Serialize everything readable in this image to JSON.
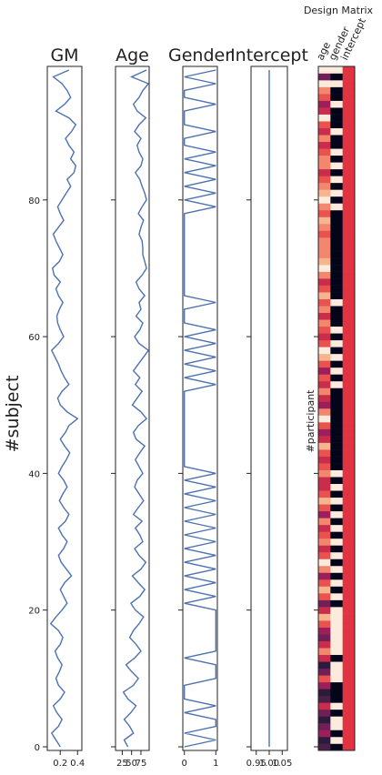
{
  "chart_data": {
    "type": "line",
    "ylabel": "#subject",
    "ylim": [
      0,
      99
    ],
    "yticks": [
      0,
      20,
      40,
      60,
      80
    ],
    "line_color": "#4c72b0",
    "panels": [
      {
        "title": "GM",
        "xticks": [
          0.2,
          0.4
        ],
        "xlim": [
          0.05,
          0.45
        ],
        "values": [
          0.2,
          0.15,
          0.1,
          0.18,
          0.22,
          0.16,
          0.12,
          0.2,
          0.25,
          0.18,
          0.15,
          0.19,
          0.22,
          0.17,
          0.14,
          0.2,
          0.23,
          0.18,
          0.09,
          0.15,
          0.22,
          0.28,
          0.24,
          0.2,
          0.25,
          0.33,
          0.27,
          0.21,
          0.18,
          0.24,
          0.28,
          0.22,
          0.18,
          0.26,
          0.3,
          0.24,
          0.19,
          0.23,
          0.28,
          0.24,
          0.18,
          0.22,
          0.27,
          0.31,
          0.25,
          0.2,
          0.26,
          0.3,
          0.4,
          0.28,
          0.2,
          0.17,
          0.22,
          0.3,
          0.25,
          0.21,
          0.18,
          0.14,
          0.1,
          0.18,
          0.24,
          0.2,
          0.17,
          0.16,
          0.19,
          0.23,
          0.18,
          0.15,
          0.2,
          0.13,
          0.11,
          0.19,
          0.23,
          0.19,
          0.15,
          0.12,
          0.18,
          0.24,
          0.2,
          0.17,
          0.22,
          0.27,
          0.32,
          0.28,
          0.36,
          0.38,
          0.32,
          0.36,
          0.3,
          0.26,
          0.33,
          0.38,
          0.3,
          0.15,
          0.25,
          0.32,
          0.28,
          0.22,
          0.12,
          0.3
        ]
      },
      {
        "title": "Age",
        "xticks": [
          25,
          50,
          75
        ],
        "xticklabels": [
          "25",
          "50",
          "75"
        ],
        "xlim": [
          7,
          97
        ],
        "values": [
          40,
          30,
          55,
          45,
          30,
          48,
          62,
          40,
          28,
          55,
          68,
          50,
          35,
          58,
          75,
          62,
          45,
          55,
          70,
          82,
          60,
          48,
          72,
          85,
          68,
          52,
          75,
          88,
          70,
          58,
          80,
          72,
          60,
          78,
          55,
          68,
          82,
          70,
          58,
          65,
          80,
          70,
          60,
          72,
          85,
          62,
          55,
          68,
          90,
          75,
          52,
          65,
          78,
          60,
          72,
          55,
          68,
          82,
          95,
          70,
          58,
          72,
          80,
          62,
          75,
          70,
          85,
          70,
          62,
          78,
          90,
          85,
          80,
          80,
          78,
          70,
          75,
          82,
          68,
          78,
          90,
          85,
          78,
          72,
          60,
          75,
          80,
          70,
          65,
          75,
          58,
          70,
          88,
          65,
          55,
          70,
          80,
          95,
          50,
          90
        ]
      },
      {
        "title": "Gender",
        "xticks": [
          0,
          1
        ],
        "xticklabels": [
          "0",
          "1"
        ],
        "xlim": [
          -0.05,
          1.05
        ],
        "values": [
          0,
          1,
          0,
          1,
          1,
          0,
          1,
          0,
          0,
          0,
          1,
          1,
          1,
          0,
          1,
          1,
          1,
          1,
          1,
          1,
          1,
          0,
          1,
          0,
          1,
          0,
          1,
          0,
          1,
          0,
          1,
          0,
          1,
          0,
          1,
          0,
          1,
          0,
          1,
          0,
          1,
          0,
          0,
          0,
          0,
          0,
          0,
          0,
          0,
          0,
          0,
          0,
          0,
          1,
          0,
          1,
          0,
          1,
          0,
          1,
          0,
          1,
          0,
          0,
          0,
          1,
          0,
          0,
          0,
          0,
          0,
          0,
          0,
          0,
          0,
          0,
          0,
          0,
          0,
          1,
          0,
          1,
          0,
          1,
          0,
          1,
          0,
          1,
          0,
          0,
          1,
          0,
          0,
          0,
          1,
          0,
          0,
          1,
          0,
          1
        ]
      },
      {
        "title": "Intercept",
        "xticks": [
          0.95,
          1.0,
          1.05
        ],
        "xticklabels": [
          "0.95",
          "1.00",
          "1.05"
        ],
        "xlim": [
          0.93,
          1.07
        ],
        "values": "constant-1"
      }
    ],
    "design_matrix": {
      "title": "Design Matrix",
      "ylabel": "#participant",
      "columns": [
        "age",
        "gender",
        "intercept"
      ],
      "colormap": "rocket"
    }
  }
}
